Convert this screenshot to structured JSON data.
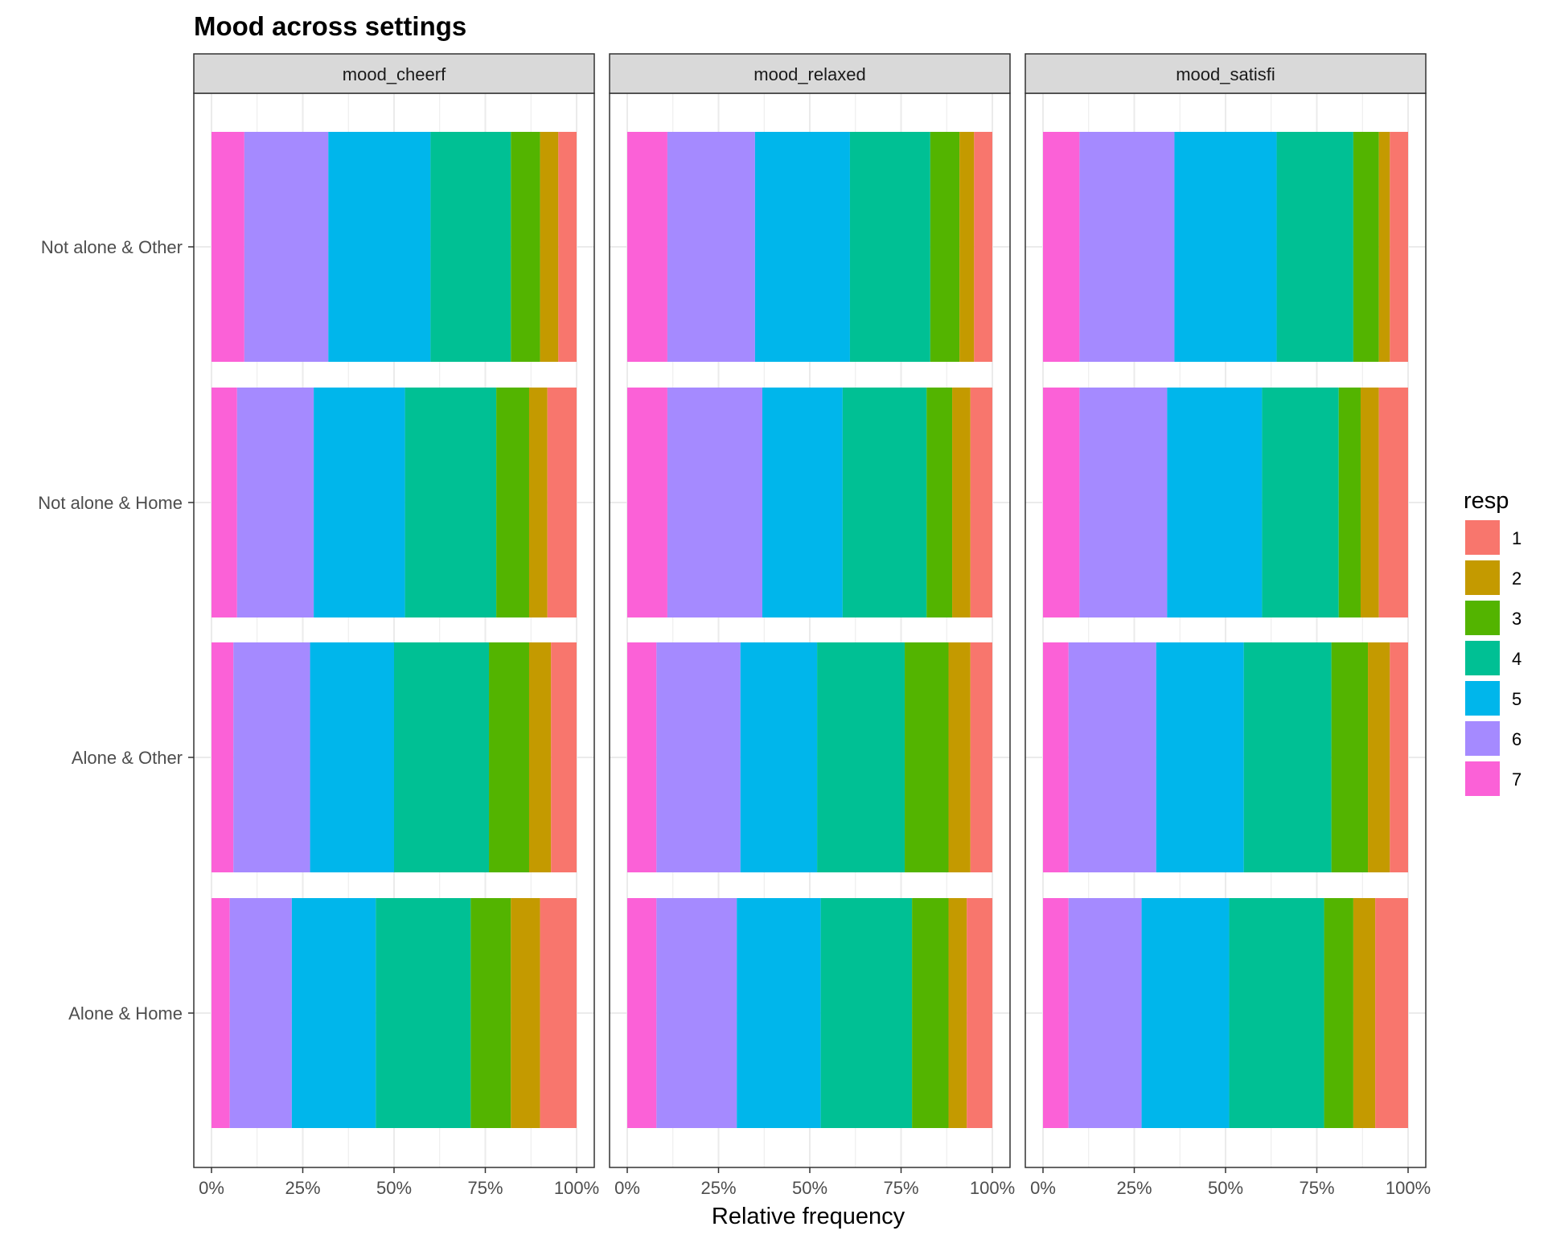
{
  "chart_data": {
    "type": "bar",
    "orientation": "horizontal",
    "stacked": true,
    "normalized": true,
    "title": "Mood across settings",
    "xlabel": "Relative frequency",
    "ylabel": "",
    "xlim": [
      0,
      1
    ],
    "x_ticks": [
      "0%",
      "25%",
      "50%",
      "75%",
      "100%"
    ],
    "grid": true,
    "facets": [
      "mood_cheerf",
      "mood_relaxed",
      "mood_satisfi"
    ],
    "categories": [
      "Not alone & Other",
      "Not alone & Home",
      "Alone & Other",
      "Alone & Home"
    ],
    "legend": {
      "title": "resp",
      "position": "right",
      "items": [
        {
          "label": "1",
          "color": "#F8766D"
        },
        {
          "label": "2",
          "color": "#C49A00"
        },
        {
          "label": "3",
          "color": "#53B400"
        },
        {
          "label": "4",
          "color": "#00C094"
        },
        {
          "label": "5",
          "color": "#00B6EB"
        },
        {
          "label": "6",
          "color": "#A58AFF"
        },
        {
          "label": "7",
          "color": "#FB61D7"
        }
      ]
    },
    "stack_order_left_to_right": [
      "7",
      "6",
      "5",
      "4",
      "3",
      "2",
      "1"
    ],
    "panels": [
      {
        "facet": "mood_cheerf",
        "rows": [
          {
            "category": "Not alone & Other",
            "values": {
              "7": 0.09,
              "6": 0.23,
              "5": 0.28,
              "4": 0.22,
              "3": 0.08,
              "2": 0.05,
              "1": 0.05
            }
          },
          {
            "category": "Not alone & Home",
            "values": {
              "7": 0.07,
              "6": 0.21,
              "5": 0.25,
              "4": 0.25,
              "3": 0.09,
              "2": 0.05,
              "1": 0.08
            }
          },
          {
            "category": "Alone & Other",
            "values": {
              "7": 0.06,
              "6": 0.21,
              "5": 0.23,
              "4": 0.26,
              "3": 0.11,
              "2": 0.06,
              "1": 0.07
            }
          },
          {
            "category": "Alone & Home",
            "values": {
              "7": 0.05,
              "6": 0.17,
              "5": 0.23,
              "4": 0.26,
              "3": 0.11,
              "2": 0.08,
              "1": 0.1
            }
          }
        ]
      },
      {
        "facet": "mood_relaxed",
        "rows": [
          {
            "category": "Not alone & Other",
            "values": {
              "7": 0.11,
              "6": 0.24,
              "5": 0.26,
              "4": 0.22,
              "3": 0.08,
              "2": 0.04,
              "1": 0.05
            }
          },
          {
            "category": "Not alone & Home",
            "values": {
              "7": 0.11,
              "6": 0.26,
              "5": 0.22,
              "4": 0.23,
              "3": 0.07,
              "2": 0.05,
              "1": 0.06
            }
          },
          {
            "category": "Alone & Other",
            "values": {
              "7": 0.08,
              "6": 0.23,
              "5": 0.21,
              "4": 0.24,
              "3": 0.12,
              "2": 0.06,
              "1": 0.06
            }
          },
          {
            "category": "Alone & Home",
            "values": {
              "7": 0.08,
              "6": 0.22,
              "5": 0.23,
              "4": 0.25,
              "3": 0.1,
              "2": 0.05,
              "1": 0.07
            }
          }
        ]
      },
      {
        "facet": "mood_satisfi",
        "rows": [
          {
            "category": "Not alone & Other",
            "values": {
              "7": 0.1,
              "6": 0.26,
              "5": 0.28,
              "4": 0.21,
              "3": 0.07,
              "2": 0.03,
              "1": 0.05
            }
          },
          {
            "category": "Not alone & Home",
            "values": {
              "7": 0.1,
              "6": 0.24,
              "5": 0.26,
              "4": 0.21,
              "3": 0.06,
              "2": 0.05,
              "1": 0.08
            }
          },
          {
            "category": "Alone & Other",
            "values": {
              "7": 0.07,
              "6": 0.24,
              "5": 0.24,
              "4": 0.24,
              "3": 0.1,
              "2": 0.06,
              "1": 0.05
            }
          },
          {
            "category": "Alone & Home",
            "values": {
              "7": 0.07,
              "6": 0.2,
              "5": 0.24,
              "4": 0.26,
              "3": 0.08,
              "2": 0.06,
              "1": 0.09
            }
          }
        ]
      }
    ]
  }
}
